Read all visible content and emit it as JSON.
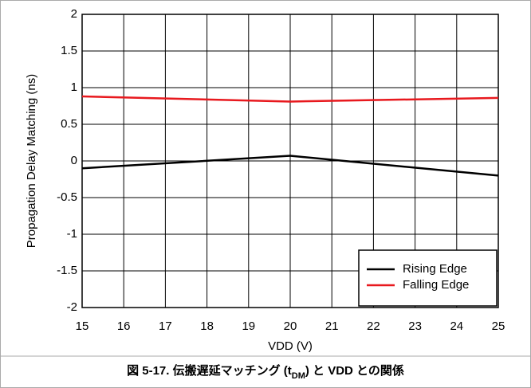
{
  "chart_data": {
    "type": "line",
    "title": [
      "図 5-17. 伝搬遅延マッチング (t",
      "DM",
      ") と VDD との関係"
    ],
    "x_label": "VDD (V)",
    "y_label": "Propagation Delay Matching (ns)",
    "x": [
      15,
      20,
      25
    ],
    "series": [
      {
        "name": "Rising Edge",
        "color": "#000000",
        "values": [
          -0.1,
          0.07,
          -0.2
        ]
      },
      {
        "name": "Falling Edge",
        "color": "#e8191e",
        "values": [
          0.88,
          0.81,
          0.86
        ]
      }
    ],
    "xlim": [
      15,
      25
    ],
    "xticks": [
      15,
      16,
      17,
      18,
      19,
      20,
      21,
      22,
      23,
      24,
      25
    ],
    "ylim": [
      -2,
      2
    ],
    "yticks": [
      -2,
      -1.5,
      -1,
      -0.5,
      0,
      0.5,
      1,
      1.5,
      2
    ],
    "grid": true,
    "legend": "lower right"
  }
}
